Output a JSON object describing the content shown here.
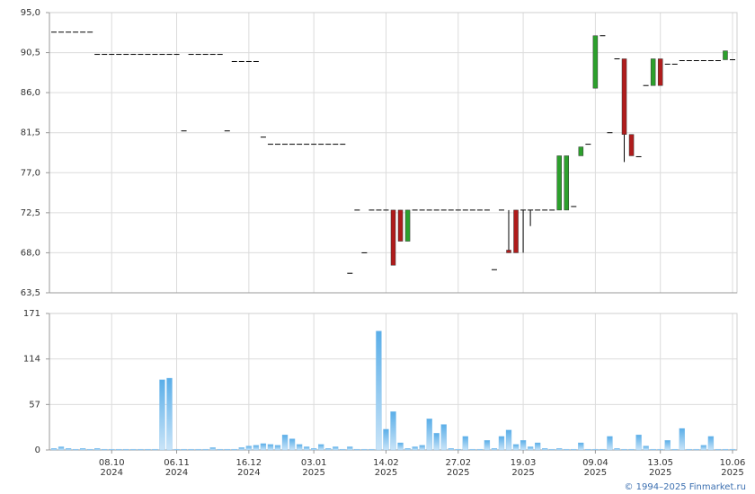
{
  "chart_data": [
    {
      "type": "candlestick",
      "ylim": [
        63.5,
        95.0
      ],
      "yticks": [
        {
          "value": 63.5,
          "label": "63,5"
        },
        {
          "value": 68.0,
          "label": "68,0"
        },
        {
          "value": 72.5,
          "label": "72,5"
        },
        {
          "value": 77.0,
          "label": "77,0"
        },
        {
          "value": 81.5,
          "label": "81,5"
        },
        {
          "value": 86.0,
          "label": "86,0"
        },
        {
          "value": 90.5,
          "label": "90,5"
        },
        {
          "value": 95.0,
          "label": "95,0"
        }
      ],
      "grid": true,
      "up_color": "#2ca02c",
      "down_color": "#b01c1c",
      "flat_color": "#000000",
      "open": [
        92.8,
        92.8,
        92.8,
        92.8,
        92.8,
        92.8,
        90.3,
        90.3,
        90.3,
        90.3,
        90.3,
        90.3,
        90.3,
        90.3,
        90.3,
        90.3,
        90.3,
        90.3,
        81.7,
        90.3,
        90.3,
        90.3,
        90.3,
        90.3,
        81.7,
        89.5,
        89.5,
        89.5,
        89.5,
        81.0,
        80.2,
        80.2,
        80.2,
        80.2,
        80.2,
        80.2,
        80.2,
        80.2,
        80.2,
        80.2,
        80.2,
        65.7,
        72.8,
        68.0,
        72.8,
        72.8,
        72.8,
        72.8,
        72.8,
        69.3,
        72.8,
        72.8,
        72.8,
        72.8,
        72.8,
        72.8,
        72.8,
        72.8,
        72.8,
        72.8,
        72.8,
        66.1,
        72.8,
        68.3,
        72.8,
        72.8,
        72.8,
        72.8,
        72.8,
        72.8,
        72.8,
        72.8,
        73.2,
        78.9,
        80.2,
        86.5,
        92.4,
        81.5,
        89.8,
        89.8,
        81.3,
        78.8,
        86.8,
        86.8,
        89.8,
        89.2,
        89.2,
        89.6,
        89.6,
        89.6,
        89.6,
        89.6,
        89.6,
        89.7,
        89.7
      ],
      "high": [
        92.8,
        92.8,
        92.8,
        92.8,
        92.8,
        92.8,
        90.3,
        90.3,
        90.3,
        90.3,
        90.3,
        90.3,
        90.3,
        90.3,
        90.3,
        90.3,
        90.3,
        90.3,
        81.7,
        90.3,
        90.3,
        90.3,
        90.3,
        90.3,
        81.7,
        89.5,
        89.5,
        89.5,
        89.5,
        81.0,
        80.2,
        80.2,
        80.2,
        80.2,
        80.2,
        80.2,
        80.2,
        80.2,
        80.2,
        80.2,
        80.2,
        65.7,
        72.8,
        68.0,
        72.8,
        72.8,
        72.8,
        72.8,
        72.8,
        72.8,
        72.8,
        72.8,
        72.8,
        72.8,
        72.8,
        72.8,
        72.8,
        72.8,
        72.8,
        72.8,
        72.8,
        66.1,
        72.8,
        72.8,
        72.8,
        72.8,
        72.8,
        72.8,
        72.8,
        72.8,
        78.9,
        78.9,
        73.2,
        79.9,
        80.2,
        92.4,
        92.4,
        81.5,
        89.8,
        89.8,
        81.3,
        78.8,
        86.8,
        89.8,
        89.8,
        89.2,
        89.2,
        89.6,
        89.6,
        89.6,
        89.6,
        89.6,
        89.6,
        90.7,
        89.7
      ],
      "low": [
        92.8,
        92.8,
        92.8,
        92.8,
        92.8,
        92.8,
        90.3,
        90.3,
        90.3,
        90.3,
        90.3,
        90.3,
        90.3,
        90.3,
        90.3,
        90.3,
        90.3,
        90.3,
        81.7,
        90.3,
        90.3,
        90.3,
        90.3,
        90.3,
        81.7,
        89.5,
        89.5,
        89.5,
        89.5,
        81.0,
        80.2,
        80.2,
        80.2,
        80.2,
        80.2,
        80.2,
        80.2,
        80.2,
        80.2,
        80.2,
        80.2,
        65.7,
        72.8,
        68.0,
        72.8,
        72.8,
        72.8,
        66.6,
        69.3,
        69.3,
        72.8,
        72.8,
        72.8,
        72.8,
        72.8,
        72.8,
        72.8,
        72.8,
        72.8,
        72.8,
        72.8,
        66.1,
        72.8,
        68.0,
        68.0,
        68.0,
        71.0,
        72.8,
        72.8,
        72.8,
        72.8,
        72.8,
        73.2,
        78.9,
        80.2,
        86.5,
        92.4,
        81.5,
        89.8,
        78.2,
        78.9,
        78.8,
        86.8,
        86.8,
        86.8,
        89.2,
        89.2,
        89.6,
        89.6,
        89.6,
        89.6,
        89.6,
        89.6,
        89.7,
        89.7
      ],
      "close": [
        92.8,
        92.8,
        92.8,
        92.8,
        92.8,
        92.8,
        90.3,
        90.3,
        90.3,
        90.3,
        90.3,
        90.3,
        90.3,
        90.3,
        90.3,
        90.3,
        90.3,
        90.3,
        81.7,
        90.3,
        90.3,
        90.3,
        90.3,
        90.3,
        81.7,
        89.5,
        89.5,
        89.5,
        89.5,
        81.0,
        80.2,
        80.2,
        80.2,
        80.2,
        80.2,
        80.2,
        80.2,
        80.2,
        80.2,
        80.2,
        80.2,
        65.7,
        72.8,
        68.0,
        72.8,
        72.8,
        72.8,
        66.6,
        69.3,
        72.8,
        72.8,
        72.8,
        72.8,
        72.8,
        72.8,
        72.8,
        72.8,
        72.8,
        72.8,
        72.8,
        72.8,
        66.1,
        72.8,
        68.0,
        68.0,
        72.8,
        72.8,
        72.8,
        72.8,
        72.8,
        78.9,
        78.9,
        73.2,
        79.9,
        80.2,
        92.4,
        92.4,
        81.5,
        89.8,
        81.3,
        78.9,
        78.8,
        86.8,
        89.8,
        86.8,
        89.2,
        89.2,
        89.6,
        89.6,
        89.6,
        89.6,
        89.6,
        89.6,
        90.7,
        89.7
      ]
    },
    {
      "type": "bar",
      "ylim": [
        0,
        171
      ],
      "yticks": [
        0,
        57,
        114,
        171
      ],
      "grid": true,
      "color": "#7bbcec",
      "categories": [
        null,
        null,
        null,
        null,
        null,
        null,
        null,
        null,
        "08.10 2024",
        null,
        null,
        null,
        null,
        null,
        null,
        null,
        null,
        "06.11 2024",
        null,
        null,
        null,
        null,
        null,
        null,
        null,
        null,
        null,
        "16.12 2024",
        null,
        null,
        null,
        null,
        null,
        null,
        null,
        null,
        "03.01 2025",
        null,
        null,
        null,
        null,
        null,
        null,
        null,
        null,
        null,
        "14.02 2025",
        null,
        null,
        null,
        null,
        null,
        null,
        null,
        null,
        null,
        "27.02 2025",
        null,
        null,
        null,
        null,
        null,
        null,
        null,
        null,
        "19.03 2025",
        null,
        null,
        null,
        null,
        null,
        null,
        null,
        null,
        null,
        "09.04 2025",
        null,
        null,
        null,
        null,
        null,
        null,
        null,
        null,
        "13.05 2025",
        null,
        null,
        null,
        null,
        null,
        null,
        null,
        null,
        null,
        "10.06 2025"
      ],
      "values": [
        2,
        4,
        2,
        1,
        2,
        1,
        2,
        1,
        1,
        1,
        1,
        1,
        1,
        1,
        1,
        88,
        90,
        1,
        1,
        1,
        1,
        1,
        3,
        1,
        1,
        1,
        3,
        5,
        6,
        8,
        7,
        6,
        19,
        14,
        7,
        4,
        2,
        7,
        2,
        4,
        1,
        4,
        1,
        1,
        1,
        149,
        26,
        48,
        9,
        2,
        4,
        6,
        39,
        21,
        32,
        2,
        1,
        17,
        1,
        1,
        12,
        2,
        17,
        25,
        7,
        12,
        4,
        9,
        2,
        1,
        2,
        1,
        1,
        9,
        1,
        1,
        1,
        17,
        2,
        1,
        1,
        19,
        5,
        1,
        1,
        12,
        1,
        27,
        1,
        1,
        6,
        17,
        1,
        1,
        1
      ]
    }
  ],
  "footer": "© 1994–2025 Finmarket.ru"
}
